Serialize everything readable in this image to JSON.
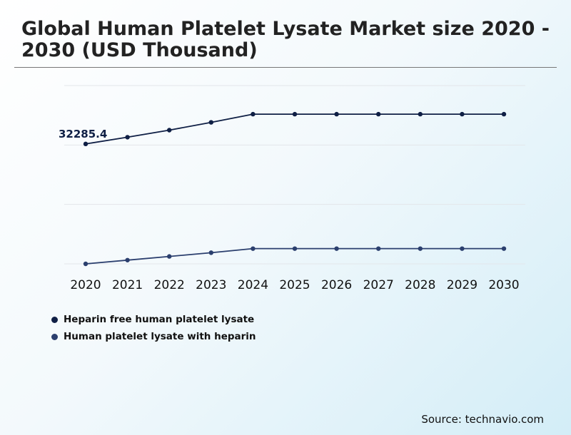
{
  "title": "Global Human Platelet Lysate Market size 2020 - 2030 (USD Thousand)",
  "source": "Source: technavio.com",
  "colors": {
    "series1": "#0f1f45",
    "series2": "#2b3f6e",
    "grid": "#e3e6ea",
    "text": "#222222"
  },
  "chart_data": {
    "type": "line",
    "title": "Global Human Platelet Lysate Market size 2020 - 2030 (USD Thousand)",
    "xlabel": "",
    "ylabel": "",
    "x": [
      "2020",
      "2021",
      "2022",
      "2023",
      "2024",
      "2025",
      "2026",
      "2027",
      "2028",
      "2029",
      "2030"
    ],
    "ylim": [
      0,
      48000
    ],
    "grid": true,
    "legend_position": "bottom-left",
    "series": [
      {
        "name": "Heparin free human platelet lysate",
        "values": [
          32285.4,
          34100,
          36000,
          38100,
          40300,
          40300,
          40300,
          40300,
          40300,
          40300,
          40300
        ],
        "first_label": "32285.4"
      },
      {
        "name": "Human platelet lysate with heparin",
        "values": [
          0,
          1000,
          2000,
          3000,
          4100,
          4100,
          4100,
          4100,
          4100,
          4100,
          4100
        ]
      }
    ]
  }
}
